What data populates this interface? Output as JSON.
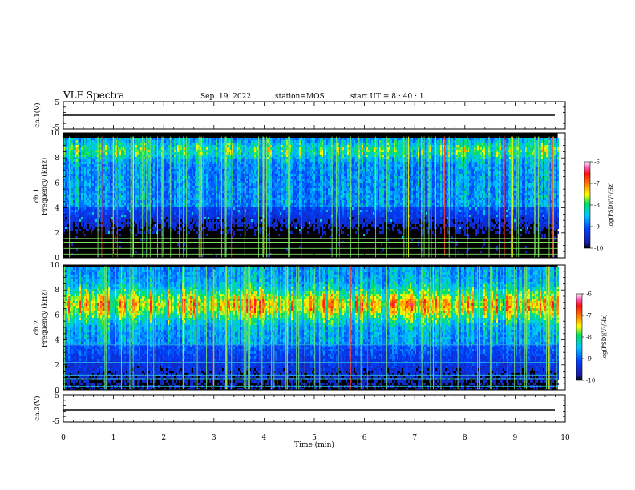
{
  "header": {
    "title": "VLF Spectra",
    "date": "Sep. 19, 2022",
    "station": "station=MOS",
    "start": "start  UT =  8 : 40 : 1"
  },
  "colors": {
    "background": "#000000",
    "noise": "#1a1aa0",
    "power_line": "#7fe860",
    "trace": "#000000"
  },
  "chart_data": [
    {
      "type": "line",
      "panel": "ch1-waveform",
      "ylabel": "ch.1(V)",
      "ylim": [
        -5,
        5
      ],
      "yticks": [
        "5",
        "-5"
      ],
      "xlim": [
        0,
        10
      ],
      "series": [
        {
          "x": [
            0,
            9.85
          ],
          "values": [
            0,
            0
          ]
        }
      ]
    },
    {
      "type": "heatmap",
      "panel": "ch1-spectrogram",
      "ylabel_channel": "ch.1",
      "ylabel": "Frequency (kHz)",
      "ylim": [
        0,
        10
      ],
      "yticks": [
        "0",
        "2",
        "4",
        "6",
        "8",
        "10"
      ],
      "xlim": [
        0,
        10
      ],
      "data_extent_min": 9.85,
      "band_khz": [
        [
          4.0,
          9.6
        ]
      ],
      "hum_lines_khz": [
        0.3,
        0.55,
        0.75,
        1.25,
        1.55
      ],
      "colorbar": {
        "label": "log(PSD)(V²/Hz)",
        "range": [
          -10,
          -6
        ],
        "ticks": [
          "-6",
          "-7",
          "-8",
          "-9",
          "-10"
        ]
      }
    },
    {
      "type": "heatmap",
      "panel": "ch2-spectrogram",
      "ylabel_channel": "ch.2",
      "ylabel": "Frequency (kHz)",
      "ylim": [
        0,
        10
      ],
      "yticks": [
        "0",
        "2",
        "4",
        "6",
        "8",
        "10"
      ],
      "xlim": [
        0,
        10
      ],
      "data_extent_min": 9.85,
      "band_khz": [
        [
          4.5,
          9.2
        ]
      ],
      "peak_khz": 6.8,
      "hum_lines_khz": [
        0.3,
        0.9,
        1.2,
        2.2,
        3.6
      ],
      "colorbar": {
        "label": "log(PSD)(V²/Hz)",
        "range": [
          -10,
          -6
        ],
        "ticks": [
          "-6",
          "-7",
          "-8",
          "-9",
          "-10"
        ]
      }
    },
    {
      "type": "line",
      "panel": "ch3-waveform",
      "ylabel": "ch.3(V)",
      "ylim": [
        -5,
        5
      ],
      "yticks": [
        "5",
        "-5"
      ],
      "xlim": [
        0,
        10
      ],
      "xlabel": "Time (min)",
      "xticks": [
        "0",
        "1",
        "2",
        "3",
        "4",
        "5",
        "6",
        "7",
        "8",
        "9",
        "10"
      ],
      "series": [
        {
          "x": [
            0,
            9.85
          ],
          "values": [
            0,
            0
          ]
        }
      ]
    }
  ]
}
